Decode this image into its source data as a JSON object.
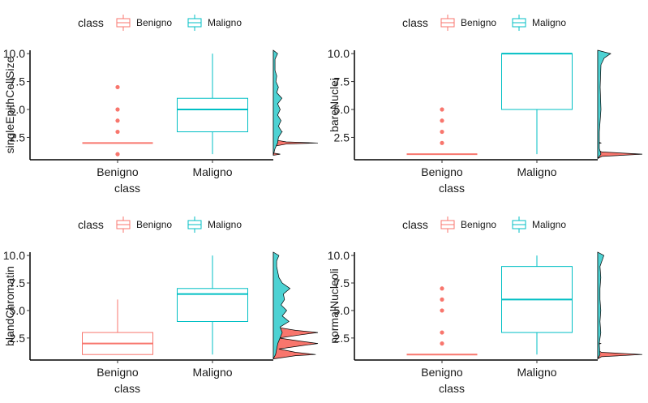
{
  "colors": {
    "benigno": "#F8766D",
    "maligno": "#00BFC4",
    "maligno_fill": "#4DD2D3",
    "axis": "#000000"
  },
  "chart_data": [
    {
      "type": "box",
      "xlabel": "class",
      "ylabel": "singleEpithCellSize",
      "categories": [
        "Benigno",
        "Maligno"
      ],
      "ylim": [
        0.5,
        10.3
      ],
      "yticks": [
        "2.5",
        "5.0",
        "7.5",
        "10.0"
      ],
      "ytick_values": [
        2.5,
        5.0,
        7.5,
        10.0
      ],
      "legend": {
        "title": "class",
        "entries": [
          "Benigno",
          "Maligno"
        ],
        "position": "top"
      },
      "boxes": [
        {
          "name": "Benigno",
          "min": 2,
          "q1": 2,
          "median": 2,
          "q3": 2,
          "max": 2,
          "outliers": [
            1,
            3,
            4,
            5,
            7
          ]
        },
        {
          "name": "Maligno",
          "min": 1,
          "q1": 3,
          "median": 5,
          "q3": 6,
          "max": 10,
          "outliers": []
        }
      ],
      "marginal_density": [
        {
          "name": "Benigno",
          "points": [
            [
              0.9,
              0
            ],
            [
              1,
              0.08
            ],
            [
              1.1,
              0
            ],
            [
              1.7,
              0
            ],
            [
              1.9,
              0.15
            ],
            [
              2,
              0.52
            ],
            [
              2.1,
              0.15
            ],
            [
              2.3,
              0
            ],
            [
              2.8,
              0
            ],
            [
              3,
              0.1
            ],
            [
              3.2,
              0
            ],
            [
              10.3,
              0
            ]
          ]
        },
        {
          "name": "Maligno",
          "points": [
            [
              0.9,
              0
            ],
            [
              1.5,
              0.02
            ],
            [
              2,
              0.05
            ],
            [
              2.5,
              0.06
            ],
            [
              3,
              0.1
            ],
            [
              3.5,
              0.06
            ],
            [
              4,
              0.09
            ],
            [
              4.5,
              0.05
            ],
            [
              5,
              0.08
            ],
            [
              5.5,
              0.05
            ],
            [
              6,
              0.1
            ],
            [
              6.5,
              0.04
            ],
            [
              7,
              0.06
            ],
            [
              7.5,
              0.03
            ],
            [
              8,
              0.04
            ],
            [
              8.5,
              0.02
            ],
            [
              9,
              0.02
            ],
            [
              9.5,
              0.02
            ],
            [
              10,
              0.05
            ],
            [
              10.3,
              0
            ]
          ]
        }
      ]
    },
    {
      "type": "box",
      "xlabel": "class",
      "ylabel": "bareNuclei",
      "categories": [
        "Benigno",
        "Maligno"
      ],
      "ylim": [
        0.5,
        10.3
      ],
      "yticks": [
        "2.5",
        "5.0",
        "7.5",
        "10.0"
      ],
      "ytick_values": [
        2.5,
        5.0,
        7.5,
        10.0
      ],
      "legend": {
        "title": "class",
        "entries": [
          "Benigno",
          "Maligno"
        ],
        "position": "top"
      },
      "boxes": [
        {
          "name": "Benigno",
          "min": 1,
          "q1": 1,
          "median": 1,
          "q3": 1,
          "max": 1,
          "outliers": [
            2,
            3,
            4,
            5
          ]
        },
        {
          "name": "Maligno",
          "min": 1,
          "q1": 5,
          "median": 10,
          "q3": 10,
          "max": 10,
          "outliers": []
        }
      ],
      "marginal_density": [
        {
          "name": "Benigno",
          "points": [
            [
              0.6,
              0
            ],
            [
              0.8,
              0.05
            ],
            [
              1,
              0.55
            ],
            [
              1.2,
              0.05
            ],
            [
              1.4,
              0
            ],
            [
              1.9,
              0
            ],
            [
              2,
              0.04
            ],
            [
              2.1,
              0
            ],
            [
              10.3,
              0
            ]
          ]
        },
        {
          "name": "Maligno",
          "points": [
            [
              0.6,
              0
            ],
            [
              1,
              0.04
            ],
            [
              1.5,
              0.02
            ],
            [
              3,
              0.02
            ],
            [
              5,
              0.04
            ],
            [
              7,
              0.03
            ],
            [
              9,
              0.04
            ],
            [
              9.6,
              0.08
            ],
            [
              10,
              0.16
            ],
            [
              10.3,
              0
            ]
          ]
        }
      ]
    },
    {
      "type": "box",
      "xlabel": "class",
      "ylabel": "blandChromatin",
      "categories": [
        "Benigno",
        "Maligno"
      ],
      "ylim": [
        0.5,
        10.3
      ],
      "yticks": [
        "2.5",
        "5.0",
        "7.5",
        "10.0"
      ],
      "ytick_values": [
        2.5,
        5.0,
        7.5,
        10.0
      ],
      "legend": {
        "title": "class",
        "entries": [
          "Benigno",
          "Maligno"
        ],
        "position": "top"
      },
      "boxes": [
        {
          "name": "Benigno",
          "min": 1,
          "q1": 1,
          "median": 2,
          "q3": 3,
          "max": 6,
          "outliers": []
        },
        {
          "name": "Maligno",
          "min": 1,
          "q1": 4,
          "median": 6.5,
          "q3": 7,
          "max": 10,
          "outliers": []
        }
      ],
      "marginal_density": [
        {
          "name": "Benigno",
          "points": [
            [
              0.6,
              0
            ],
            [
              0.9,
              0.2
            ],
            [
              1,
              0.38
            ],
            [
              1.2,
              0.2
            ],
            [
              1.5,
              0.05
            ],
            [
              1.8,
              0.25
            ],
            [
              2,
              0.4
            ],
            [
              2.2,
              0.25
            ],
            [
              2.5,
              0.05
            ],
            [
              2.8,
              0.25
            ],
            [
              3,
              0.4
            ],
            [
              3.2,
              0.2
            ],
            [
              3.5,
              0.02
            ],
            [
              4,
              0
            ],
            [
              10.3,
              0
            ]
          ]
        },
        {
          "name": "Maligno",
          "points": [
            [
              0.6,
              0
            ],
            [
              1,
              0.02
            ],
            [
              2,
              0.04
            ],
            [
              3,
              0.08
            ],
            [
              3.5,
              0.06
            ],
            [
              4,
              0.14
            ],
            [
              4.5,
              0.08
            ],
            [
              5,
              0.12
            ],
            [
              5.5,
              0.07
            ],
            [
              6,
              0.1
            ],
            [
              6.5,
              0.09
            ],
            [
              7,
              0.15
            ],
            [
              7.5,
              0.08
            ],
            [
              8,
              0.05
            ],
            [
              8.5,
              0.04
            ],
            [
              9,
              0.03
            ],
            [
              9.5,
              0.03
            ],
            [
              10,
              0.05
            ],
            [
              10.3,
              0
            ]
          ]
        }
      ]
    },
    {
      "type": "box",
      "xlabel": "class",
      "ylabel": "normalNucleoli",
      "categories": [
        "Benigno",
        "Maligno"
      ],
      "ylim": [
        0.5,
        10.3
      ],
      "yticks": [
        "2.5",
        "5.0",
        "7.5",
        "10.0"
      ],
      "ytick_values": [
        2.5,
        5.0,
        7.5,
        10.0
      ],
      "legend": {
        "title": "class",
        "entries": [
          "Benigno",
          "Maligno"
        ],
        "position": "top"
      },
      "boxes": [
        {
          "name": "Benigno",
          "min": 1,
          "q1": 1,
          "median": 1,
          "q3": 1,
          "max": 1,
          "outliers": [
            2,
            3,
            5,
            6,
            7
          ]
        },
        {
          "name": "Maligno",
          "min": 1,
          "q1": 3,
          "median": 6,
          "q3": 9,
          "max": 10,
          "outliers": []
        }
      ],
      "marginal_density": [
        {
          "name": "Benigno",
          "points": [
            [
              0.6,
              0
            ],
            [
              0.8,
              0.05
            ],
            [
              1,
              0.58
            ],
            [
              1.2,
              0.05
            ],
            [
              1.4,
              0
            ],
            [
              1.9,
              0
            ],
            [
              2,
              0.04
            ],
            [
              2.1,
              0
            ],
            [
              10.3,
              0
            ]
          ]
        },
        {
          "name": "Maligno",
          "points": [
            [
              0.6,
              0
            ],
            [
              1,
              0.03
            ],
            [
              2,
              0.02
            ],
            [
              3,
              0.04
            ],
            [
              4,
              0.03
            ],
            [
              5,
              0.04
            ],
            [
              6,
              0.03
            ],
            [
              7,
              0.03
            ],
            [
              8,
              0.04
            ],
            [
              9,
              0.03
            ],
            [
              10,
              0.08
            ],
            [
              10.3,
              0
            ]
          ]
        }
      ]
    }
  ]
}
